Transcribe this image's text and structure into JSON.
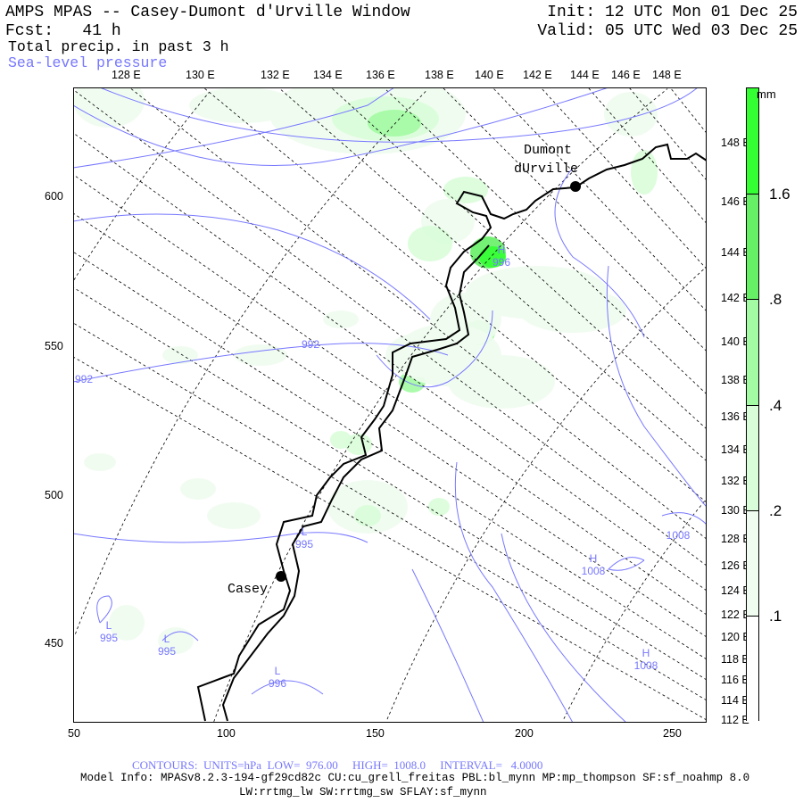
{
  "header": {
    "title": "AMPS MPAS -- Casey-Dumont d'Urville Window",
    "forecast": "Fcst:   41 h",
    "init": "Init: 12 UTC Mon 01 Dec 25",
    "valid": "Valid: 05 UTC Wed 03 Dec 25",
    "field1": "Total precip. in past 3 h",
    "field2": "Sea-level pressure"
  },
  "axes": {
    "top_lon_labels": [
      "128 E",
      "130 E",
      "132 E",
      "134 E",
      "136 E",
      "138 E",
      "140 E",
      "142 E",
      "144 E",
      "146 E",
      "148 E"
    ],
    "right_lon_labels": [
      "148 E",
      "146 E",
      "144 E",
      "142 E",
      "140 E",
      "138 E",
      "136 E",
      "134 E",
      "132 E",
      "130 E",
      "128 E",
      "126 E",
      "124 E",
      "122 E",
      "120 E",
      "118 E",
      "116 E",
      "114 E",
      "112 E"
    ],
    "left_labels": [
      "600",
      "550",
      "500",
      "450"
    ],
    "bottom_labels": [
      "50",
      "100",
      "150",
      "200",
      "250"
    ]
  },
  "colorbar": {
    "unit": "mm",
    "labels": [
      "1.6",
      ".8",
      ".4",
      ".2",
      ".1"
    ],
    "colors": [
      "#33ff33",
      "#66f066",
      "#a3fba3",
      "#d9fdd9",
      "#effcef",
      "#ffffff"
    ]
  },
  "stations": [
    {
      "name": "Casey"
    },
    {
      "name": "Dumont",
      "name2": "dUrville"
    }
  ],
  "contour_labels": [
    {
      "text": "992"
    },
    {
      "text": "992"
    },
    {
      "sym": "L",
      "text": "995"
    },
    {
      "sym": "H",
      "text": "996"
    },
    {
      "sym": "L",
      "text": "995"
    },
    {
      "sym": "L",
      "text": "995"
    },
    {
      "sym": "L",
      "text": "996"
    },
    {
      "sym": "H",
      "text": "1008"
    },
    {
      "text": "1008"
    },
    {
      "sym": "H",
      "text": "1008"
    }
  ],
  "footer": {
    "contours": "CONTOURS:  UNITS=hPa  LOW=  976.00     HIGH=  1008.0     INTERVAL=   4.0000",
    "model_info": "Model Info: MPASv8.2.3-194-gf29cd82c CU:cu_grell_freitas PBL:bl_mynn MP:mp_thompson SF:sf_noahmp 8.0",
    "model_info2": "LW:rrtmg_lw SW:rrtmg_sw SFLAY:sf_mynn"
  },
  "colors": {
    "contour": "#7777ff",
    "coast": "#000000"
  }
}
